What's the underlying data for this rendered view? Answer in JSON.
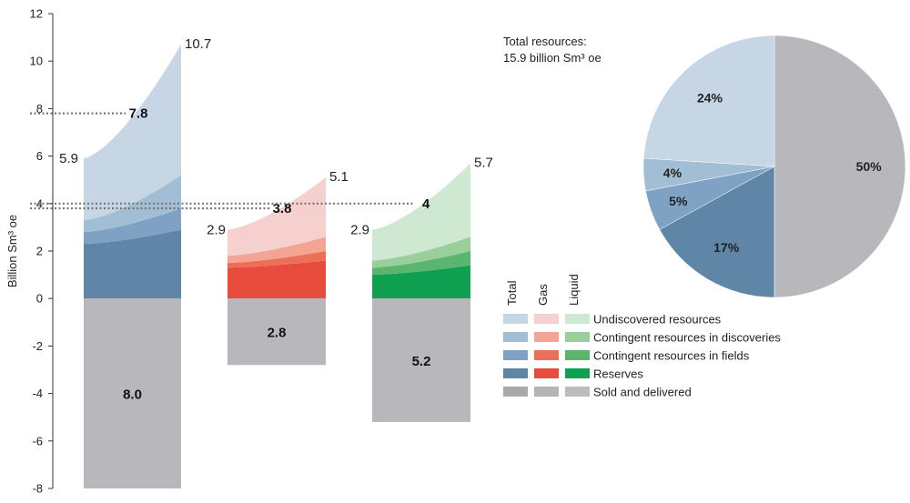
{
  "chart_data": [
    {
      "type": "area",
      "ylabel": "Billion Sm³ oe",
      "ylim": [
        -8,
        12
      ],
      "yticks": [
        12,
        10,
        8,
        6,
        4,
        2,
        0,
        -2,
        -4,
        -6,
        -8
      ],
      "groups": [
        {
          "name": "Total",
          "start_total": 5.9,
          "end_total": 10.7,
          "mid_label": 7.8,
          "sold_delivered": 8.0,
          "layers": [
            {
              "category": "Reserves",
              "start": 2.3,
              "end": 2.9,
              "color": "#5f86a6"
            },
            {
              "category": "Contingent resources in fields",
              "start": 0.5,
              "end": 0.9,
              "color": "#7fa2c4"
            },
            {
              "category": "Contingent resources in discoveries",
              "start": 0.5,
              "end": 1.4,
              "color": "#a1bed4"
            },
            {
              "category": "Undiscovered resources",
              "start": 2.6,
              "end": 5.5,
              "color": "#c7d6e4"
            }
          ],
          "sold_color": "#b8b8bc"
        },
        {
          "name": "Gas",
          "start_total": 2.9,
          "end_total": 5.1,
          "mid_label": 3.8,
          "sold_delivered": 2.8,
          "layers": [
            {
              "category": "Reserves",
              "start": 1.3,
              "end": 1.6,
              "color": "#e84c3d"
            },
            {
              "category": "Contingent resources in fields",
              "start": 0.2,
              "end": 0.4,
              "color": "#ec7057"
            },
            {
              "category": "Contingent resources in discoveries",
              "start": 0.3,
              "end": 0.6,
              "color": "#f3a493"
            },
            {
              "category": "Undiscovered resources",
              "start": 1.1,
              "end": 2.5,
              "color": "#f6d0cf"
            }
          ],
          "sold_color": "#b8b8bc"
        },
        {
          "name": "Liquid",
          "start_total": 2.9,
          "end_total": 5.7,
          "mid_label": 4.0,
          "sold_delivered": 5.2,
          "layers": [
            {
              "category": "Reserves",
              "start": 1.0,
              "end": 1.4,
              "color": "#0fa052"
            },
            {
              "category": "Contingent resources in fields",
              "start": 0.3,
              "end": 0.6,
              "color": "#5ab56e"
            },
            {
              "category": "Contingent resources in discoveries",
              "start": 0.3,
              "end": 0.6,
              "color": "#98cf9a"
            },
            {
              "category": "Undiscovered resources",
              "start": 1.3,
              "end": 3.1,
              "color": "#cfe8d1"
            }
          ],
          "sold_color": "#b8b8bc"
        }
      ]
    },
    {
      "type": "pie",
      "annotation_line1": "Total resources:",
      "annotation_line2": "15.9 billion Sm³ oe",
      "slices": [
        {
          "category": "Sold and delivered",
          "value": 50,
          "label": "50%",
          "color": "#b8b8bc"
        },
        {
          "category": "Reserves",
          "value": 17,
          "label": "17%",
          "color": "#5f86a6"
        },
        {
          "category": "Contingent resources in fields",
          "value": 5,
          "label": "5%",
          "color": "#7fa2c4"
        },
        {
          "category": "Contingent resources in discoveries",
          "value": 4,
          "label": "4%",
          "color": "#a1bed4"
        },
        {
          "category": "Undiscovered resources",
          "value": 24,
          "label": "24%",
          "color": "#c7d6e4"
        }
      ]
    }
  ],
  "legend": {
    "column_headers": [
      "Total",
      "Gas",
      "Liquid"
    ],
    "rows": [
      {
        "label": "Undiscovered resources",
        "colors": [
          "#c7d6e4",
          "#f6d0cf",
          "#cfe8d1"
        ]
      },
      {
        "label": "Contingent resources in discoveries",
        "colors": [
          "#a1bed4",
          "#f3a493",
          "#98cf9a"
        ]
      },
      {
        "label": "Contingent resources in fields",
        "colors": [
          "#7fa2c4",
          "#ec7057",
          "#5ab56e"
        ]
      },
      {
        "label": "Reserves",
        "colors": [
          "#5f86a6",
          "#e84c3d",
          "#0fa052"
        ]
      },
      {
        "label": "Sold and delivered",
        "colors": [
          "#a9a9ab",
          "#b4b4b6",
          "#bcbcbe"
        ]
      }
    ]
  }
}
